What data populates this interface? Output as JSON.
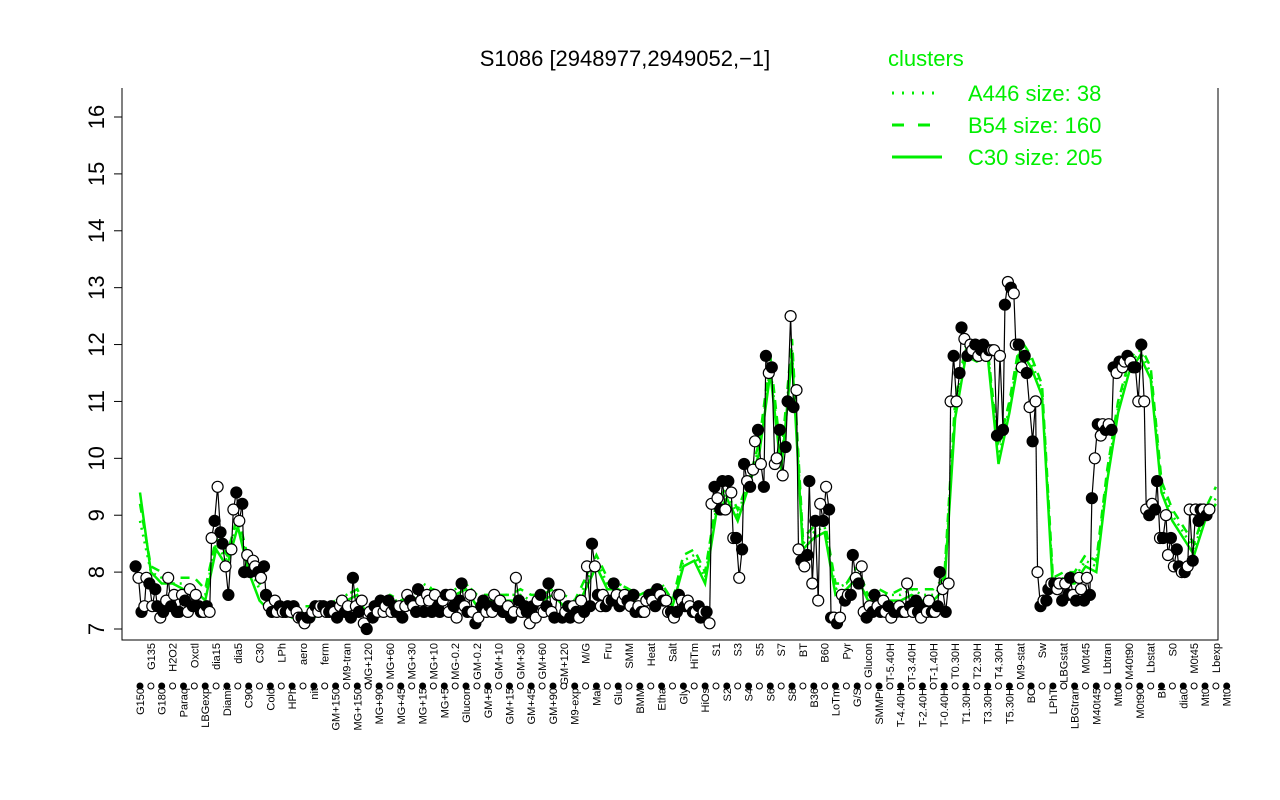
{
  "chart_data": {
    "type": "line",
    "title": "S1086 [2948977,2949052,−1]",
    "xlabel": "",
    "ylabel": "",
    "ylim": [
      7,
      16
    ],
    "yticks": [
      7,
      8,
      9,
      10,
      11,
      12,
      13,
      14,
      15,
      16
    ],
    "grid": false,
    "legend": {
      "title": "clusters",
      "placement": "top-right",
      "entries": [
        {
          "label": "A446 size: 38",
          "style": "dotted"
        },
        {
          "label": "B54 size: 160",
          "style": "dashed"
        },
        {
          "label": "C30 size: 205",
          "style": "solid"
        }
      ]
    },
    "colors": {
      "series_line": "#000000",
      "cluster": "#00ee00"
    },
    "x_tick_labels": [
      "G150",
      "G135",
      "G180",
      "H2O2",
      "Paraq",
      "Oxctl",
      "LBGexp",
      "dia15",
      "Diami",
      "dia5",
      "C90",
      "C30",
      "Cold",
      "LPh",
      "HPh",
      "aero",
      "nit",
      "ferm",
      "GM+150",
      "M9-tran",
      "MG+150",
      "MG+120",
      "MG+90",
      "MG+60",
      "MG+45",
      "MG+30",
      "MG+15",
      "MG+10",
      "MG+5",
      "MG-0.2",
      "Glucon",
      "GM-0.2",
      "GM+5",
      "GM+10",
      "GM+15",
      "GM+30",
      "GM+45",
      "GM+60",
      "GM+90",
      "GM+120",
      "M9-exp",
      "M/G",
      "Mal",
      "Fru",
      "Glu",
      "SMM",
      "BMM",
      "Heat",
      "Etha",
      "Salt",
      "Gly",
      "HiTm",
      "HiOs",
      "S1",
      "S2",
      "S3",
      "S4",
      "S5",
      "S6",
      "S7",
      "S8",
      "BT",
      "B36",
      "B60",
      "LoTm",
      "Pyr",
      "G/S",
      "Glucon",
      "SMMPr",
      "T-5.40H",
      "T-4.40H",
      "T-3.40H",
      "T-2.40H",
      "T-1.40H",
      "T-0.40H",
      "T0.30H",
      "T1.30H",
      "T2.30H",
      "T3.30H",
      "T4.30H",
      "T5.30H",
      "M9-stat",
      "BC",
      "Sw",
      "LPhT",
      "LBGstat",
      "LBGtran",
      "M0t45",
      "M40t45",
      "Lbtran",
      "Mt0",
      "M40t90",
      "M0t90",
      "Lbstat",
      "BI",
      "S0",
      "dia0",
      "M0t45",
      "Mt0",
      "Lbexp",
      "Mt0"
    ],
    "points": [
      [
        8.1,
        7.9,
        7.3,
        7.4
      ],
      [
        7.9,
        7.8,
        7.4,
        7.7
      ],
      [
        7.4,
        7.2,
        7.3,
        7.5
      ],
      [
        7.9,
        7.4,
        7.6,
        7.3
      ],
      [
        7.3,
        7.6,
        7.5,
        7.3
      ],
      [
        7.7,
        7.4,
        7.6,
        7.4
      ],
      [
        7.3,
        7.3,
        7.4,
        7.3
      ],
      [
        8.6,
        8.9,
        9.5,
        8.7
      ],
      [
        8.5,
        8.1,
        7.6,
        8.4
      ],
      [
        9.1,
        9.4,
        8.9,
        9.2
      ],
      [
        8.0,
        8.3,
        8.0,
        8.2
      ],
      [
        8.1,
        8.0,
        7.9,
        8.1
      ],
      [
        7.6,
        7.4,
        7.3,
        7.5
      ],
      [
        7.3,
        7.4,
        7.3,
        7.3
      ],
      [
        7.4,
        7.3,
        7.4,
        7.3
      ],
      [
        7.2,
        7.2,
        7.1,
        7.2
      ],
      [
        7.2,
        7.3,
        7.4,
        7.3
      ],
      [
        7.4,
        7.4,
        7.3,
        7.3
      ],
      [
        7.4,
        7.3,
        7.2,
        7.4
      ],
      [
        7.5,
        7.3,
        7.4,
        7.2
      ],
      [
        7.9,
        7.4,
        7.3,
        7.5
      ],
      [
        7.1,
        7.0,
        7.3,
        7.2
      ],
      [
        7.4,
        7.3,
        7.5,
        7.3
      ],
      [
        7.4,
        7.5,
        7.3,
        7.4
      ],
      [
        7.3,
        7.4,
        7.2,
        7.4
      ],
      [
        7.6,
        7.5,
        7.4,
        7.3
      ],
      [
        7.7,
        7.5,
        7.3,
        7.6
      ],
      [
        7.5,
        7.3,
        7.6,
        7.4
      ],
      [
        7.3,
        7.5,
        7.6,
        7.3
      ],
      [
        7.6,
        7.4,
        7.2,
        7.5
      ],
      [
        7.8,
        7.4,
        7.3,
        7.6
      ],
      [
        7.3,
        7.1,
        7.2,
        7.4
      ],
      [
        7.5,
        7.3,
        7.4,
        7.3
      ],
      [
        7.6,
        7.4,
        7.5,
        7.3
      ],
      [
        7.3,
        7.4,
        7.2,
        7.3
      ],
      [
        7.9,
        7.5,
        7.3,
        7.4
      ],
      [
        7.3,
        7.1,
        7.4,
        7.2
      ],
      [
        7.5,
        7.6,
        7.3,
        7.4
      ],
      [
        7.8,
        7.3,
        7.2,
        7.6
      ],
      [
        7.6,
        7.2,
        7.3,
        7.4
      ],
      [
        7.2,
        7.4,
        7.3,
        7.2
      ],
      [
        7.5,
        7.3,
        8.1,
        7.4
      ],
      [
        8.5,
        8.1,
        7.6,
        7.4
      ],
      [
        7.6,
        7.4,
        7.5,
        7.5
      ],
      [
        7.8,
        7.6,
        7.4,
        7.5
      ],
      [
        7.6,
        7.5,
        7.4,
        7.6
      ],
      [
        7.3,
        7.4,
        7.3,
        7.3
      ],
      [
        7.5,
        7.6,
        7.5,
        7.4
      ],
      [
        7.7,
        7.6,
        7.5,
        7.5
      ],
      [
        7.3,
        7.3,
        7.2,
        7.3
      ],
      [
        7.6,
        7.5,
        7.4,
        7.5
      ],
      [
        7.4,
        7.3,
        7.3,
        7.4
      ],
      [
        7.2,
        7.3,
        7.3,
        7.1
      ],
      [
        9.2,
        9.5,
        9.3,
        9.1
      ],
      [
        9.6,
        9.1,
        9.6,
        9.4
      ],
      [
        8.6,
        8.6,
        7.9,
        8.4
      ],
      [
        9.9,
        9.6,
        9.5,
        9.8
      ],
      [
        10.3,
        10.5,
        9.9,
        9.5
      ],
      [
        11.8,
        11.5,
        11.6,
        9.9
      ],
      [
        10.0,
        10.5,
        9.7,
        10.2
      ],
      [
        11.0,
        12.5,
        10.9,
        11.2
      ],
      [
        8.4,
        8.2,
        8.1,
        8.3
      ],
      [
        9.6,
        7.8,
        8.9,
        7.5
      ],
      [
        9.2,
        8.9,
        9.5,
        9.1
      ],
      [
        7.2,
        7.2,
        7.1,
        7.2
      ],
      [
        7.6,
        7.5,
        7.6,
        7.6
      ],
      [
        8.3,
        7.9,
        7.8,
        8.1
      ],
      [
        7.3,
        7.2,
        7.4,
        7.3
      ],
      [
        7.6,
        7.4,
        7.3,
        7.5
      ],
      [
        7.3,
        7.4,
        7.2,
        7.3
      ],
      [
        7.3,
        7.4,
        7.3,
        7.3
      ],
      [
        7.8,
        7.4,
        7.3,
        7.5
      ],
      [
        7.3,
        7.2,
        7.4,
        7.3
      ],
      [
        7.5,
        7.3,
        7.3,
        7.4
      ],
      [
        8.0,
        7.7,
        7.3,
        7.8
      ],
      [
        11.0,
        11.8,
        11.0,
        11.5
      ],
      [
        12.3,
        12.1,
        11.8,
        12.0
      ],
      [
        11.9,
        12.0,
        11.8,
        11.9
      ],
      [
        12.0,
        11.8,
        11.9,
        11.9
      ],
      [
        11.9,
        10.4,
        11.8,
        10.5
      ],
      [
        12.7,
        13.1,
        13.0,
        12.9
      ],
      [
        12.0,
        12.0,
        11.6,
        11.8
      ],
      [
        11.5,
        10.9,
        10.3,
        11.0
      ],
      [
        8.0,
        7.4,
        7.5,
        7.5
      ],
      [
        7.7,
        7.8,
        7.8,
        7.7
      ],
      [
        7.8,
        7.5,
        7.8,
        7.6
      ],
      [
        7.9,
        7.6,
        7.5,
        7.9
      ],
      [
        7.7,
        7.5,
        7.9,
        7.6
      ],
      [
        9.3,
        10.0,
        10.6,
        10.4
      ],
      [
        10.6,
        10.5,
        10.6,
        10.5
      ],
      [
        11.6,
        11.5,
        11.7,
        11.6
      ],
      [
        11.7,
        11.8,
        11.7,
        11.6
      ],
      [
        11.6,
        11.0,
        12.0,
        11.0
      ],
      [
        9.1,
        9.0,
        9.2,
        9.1
      ],
      [
        9.6,
        8.6,
        8.6,
        9.0
      ],
      [
        8.3,
        8.6,
        8.1,
        8.4
      ],
      [
        8.1,
        8.0,
        8.0,
        8.1
      ],
      [
        9.1,
        8.2,
        9.1,
        8.9
      ],
      [
        9.1,
        9.1,
        9.0,
        9.1
      ]
    ],
    "cluster_curves": {
      "A446": [
        8.9,
        8.0,
        7.9,
        7.8,
        7.8,
        7.7,
        7.6,
        8.5,
        8.2,
        8.9,
        8.1,
        7.7,
        7.4,
        7.4,
        7.3,
        7.3,
        7.3,
        7.4,
        7.5,
        7.6,
        7.7,
        7.3,
        7.5,
        7.5,
        7.5,
        7.6,
        7.8,
        7.7,
        7.6,
        7.7,
        7.8,
        7.5,
        7.6,
        7.6,
        7.6,
        7.6,
        7.5,
        7.6,
        7.7,
        7.5,
        7.4,
        7.8,
        8.2,
        7.8,
        7.8,
        7.7,
        7.5,
        7.7,
        7.8,
        7.5,
        8.2,
        8.3,
        7.9,
        9.1,
        9.4,
        9.0,
        9.6,
        10.2,
        11.6,
        9.9,
        11.9,
        8.5,
        8.7,
        8.8,
        7.7,
        7.8,
        8.0,
        7.6,
        7.6,
        7.6,
        7.6,
        7.7,
        7.6,
        7.6,
        7.8,
        10.8,
        11.9,
        11.8,
        11.9,
        10.0,
        10.9,
        12.0,
        11.7,
        11.2,
        7.8,
        7.9,
        7.9,
        8.2,
        8.1,
        9.7,
        10.9,
        11.6,
        11.9,
        11.5,
        9.5,
        9.0,
        8.7,
        8.4,
        9.0,
        9.3
      ],
      "B54": [
        9.2,
        8.1,
        8.0,
        7.9,
        7.9,
        7.9,
        7.7,
        8.6,
        8.3,
        9.0,
        8.2,
        7.8,
        7.5,
        7.4,
        7.4,
        7.4,
        7.4,
        7.4,
        7.5,
        7.6,
        7.7,
        7.4,
        7.5,
        7.6,
        7.5,
        7.6,
        7.7,
        7.7,
        7.6,
        7.7,
        7.8,
        7.6,
        7.6,
        7.6,
        7.6,
        7.7,
        7.6,
        7.6,
        7.7,
        7.6,
        7.5,
        7.9,
        8.3,
        7.9,
        7.8,
        7.7,
        7.6,
        7.7,
        7.8,
        7.5,
        8.3,
        8.4,
        8.0,
        9.2,
        9.5,
        9.1,
        9.6,
        10.3,
        11.8,
        10.0,
        12.1,
        8.6,
        8.8,
        8.9,
        7.8,
        7.8,
        8.1,
        7.6,
        7.7,
        7.6,
        7.7,
        7.7,
        7.7,
        7.7,
        7.9,
        11.0,
        12.0,
        11.9,
        11.9,
        10.2,
        11.0,
        12.1,
        11.8,
        11.3,
        7.9,
        8.0,
        8.0,
        8.3,
        8.2,
        9.8,
        11.0,
        11.7,
        12.0,
        11.6,
        9.6,
        9.1,
        8.8,
        8.5,
        9.1,
        9.5
      ],
      "C30": [
        9.4,
        8.0,
        7.8,
        7.8,
        7.7,
        7.7,
        7.5,
        8.4,
        8.1,
        8.8,
        8.0,
        7.5,
        7.3,
        7.3,
        7.2,
        7.2,
        7.2,
        7.3,
        7.4,
        7.5,
        7.6,
        7.2,
        7.4,
        7.4,
        7.4,
        7.5,
        7.6,
        7.6,
        7.5,
        7.6,
        7.7,
        7.4,
        7.5,
        7.5,
        7.5,
        7.5,
        7.4,
        7.5,
        7.6,
        7.4,
        7.3,
        7.7,
        8.1,
        7.7,
        7.7,
        7.6,
        7.4,
        7.6,
        7.7,
        7.4,
        8.1,
        8.2,
        7.8,
        9.0,
        9.3,
        8.9,
        9.5,
        10.1,
        11.5,
        9.8,
        11.8,
        8.4,
        8.6,
        8.7,
        7.6,
        7.7,
        7.9,
        7.5,
        7.5,
        7.5,
        7.5,
        7.6,
        7.5,
        7.5,
        7.7,
        10.7,
        11.8,
        11.7,
        11.8,
        9.9,
        10.8,
        11.9,
        11.6,
        11.1,
        7.7,
        7.8,
        7.8,
        8.1,
        8.0,
        9.6,
        10.8,
        11.5,
        11.8,
        11.4,
        9.4,
        8.9,
        8.6,
        8.3,
        8.9,
        9.2
      ]
    }
  }
}
